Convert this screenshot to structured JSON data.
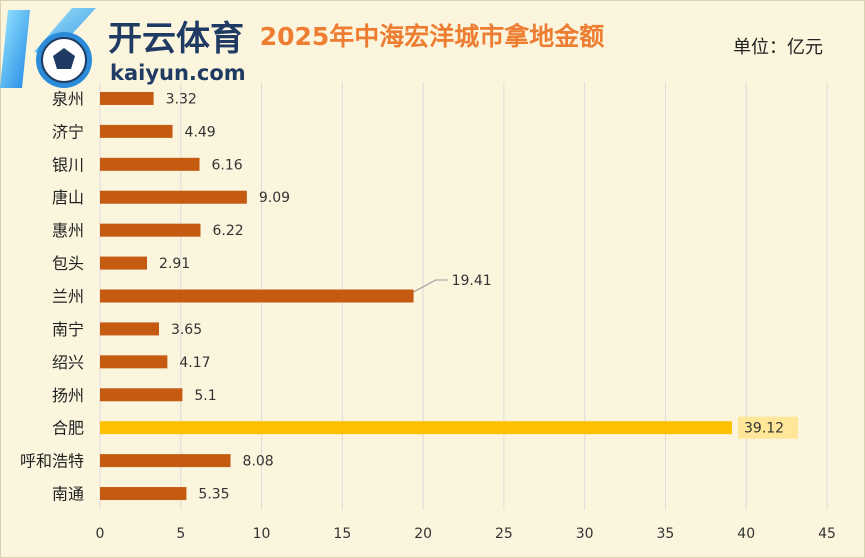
{
  "chart_data": {
    "type": "bar",
    "orientation": "horizontal",
    "title": "2025年中海宏洋城市拿地金额",
    "unit_label": "单位：亿元",
    "categories": [
      "泉州",
      "济宁",
      "银川",
      "唐山",
      "惠州",
      "包头",
      "兰州",
      "南宁",
      "绍兴",
      "扬州",
      "合肥",
      "呼和浩特",
      "南通"
    ],
    "values": [
      3.32,
      4.49,
      6.16,
      9.09,
      6.22,
      2.91,
      19.41,
      3.65,
      4.17,
      5.1,
      39.12,
      8.08,
      5.35
    ],
    "value_labels": [
      "3.32",
      "4.49",
      "6.16",
      "9.09",
      "6.22",
      "2.91",
      "19.41",
      "3.65",
      "4.17",
      "5.1",
      "39.12",
      "8.08",
      "5.35"
    ],
    "highlight_category": "合肥",
    "xlim": [
      0,
      45
    ],
    "xticks": [
      "0",
      "5",
      "10",
      "15",
      "20",
      "25",
      "30",
      "35",
      "40",
      "45"
    ],
    "grid": true,
    "legend": "none",
    "colors": {
      "bar": "#c55a11",
      "highlight": "#ffc000",
      "label_highlight_bg": "#ffe699",
      "title": "#ed7d31",
      "background": "#fbf5de",
      "grid": "#dcdcdc"
    }
  },
  "watermark": {
    "brand_text": "开云体育",
    "url_text": "kaiyun.com"
  }
}
